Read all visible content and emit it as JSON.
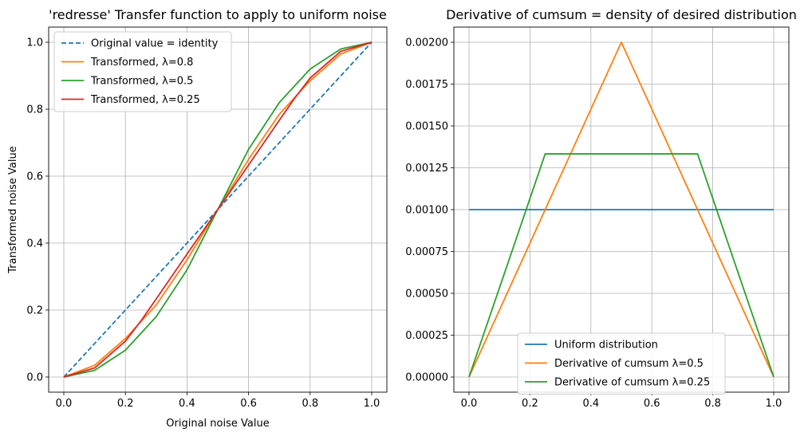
{
  "chart_data": [
    {
      "type": "line",
      "title": "'redresse' Transfer function to apply to uniform noise",
      "xlabel": "Original noise Value",
      "ylabel": "Transformed noise Value",
      "xlim": [
        0.0,
        1.0
      ],
      "ylim": [
        0.0,
        1.0
      ],
      "xticks": [
        "0.0",
        "0.2",
        "0.4",
        "0.6",
        "0.8",
        "1.0"
      ],
      "yticks": [
        "0.0",
        "0.2",
        "0.4",
        "0.6",
        "0.8",
        "1.0"
      ],
      "grid": true,
      "legend_position": "top-left",
      "series": [
        {
          "name": "Original value = identity",
          "color": "#1f77b4",
          "dashed": true,
          "x": [
            0.0,
            1.0
          ],
          "y": [
            0.0,
            1.0
          ]
        },
        {
          "name": "Transformed, λ=0.8",
          "color": "#ff7f0e",
          "dashed": false,
          "x": [
            0.0,
            0.1,
            0.2,
            0.3,
            0.4,
            0.5,
            0.6,
            0.7,
            0.8,
            0.9,
            1.0
          ],
          "y": [
            0.0,
            0.035,
            0.115,
            0.215,
            0.35,
            0.5,
            0.65,
            0.785,
            0.885,
            0.965,
            1.0
          ]
        },
        {
          "name": "Transformed, λ=0.5",
          "color": "#2ca02c",
          "dashed": false,
          "x": [
            0.0,
            0.1,
            0.2,
            0.3,
            0.4,
            0.5,
            0.6,
            0.7,
            0.8,
            0.9,
            1.0
          ],
          "y": [
            0.0,
            0.02,
            0.08,
            0.18,
            0.32,
            0.5,
            0.68,
            0.82,
            0.92,
            0.98,
            1.0
          ]
        },
        {
          "name": "Transformed, λ=0.25",
          "color": "#d62728",
          "dashed": false,
          "x": [
            0.0,
            0.1,
            0.2,
            0.25,
            0.3,
            0.4,
            0.5,
            0.6,
            0.7,
            0.75,
            0.8,
            0.9,
            1.0
          ],
          "y": [
            0.0,
            0.027,
            0.107,
            0.167,
            0.233,
            0.367,
            0.5,
            0.633,
            0.767,
            0.833,
            0.893,
            0.973,
            1.0
          ]
        }
      ]
    },
    {
      "type": "line",
      "title": "Derivative of cumsum = density of desired distribution",
      "xlabel": "",
      "ylabel": "",
      "xlim": [
        0.0,
        1.0
      ],
      "ylim": [
        0.0,
        0.002
      ],
      "xticks": [
        "0.0",
        "0.2",
        "0.4",
        "0.6",
        "0.8",
        "1.0"
      ],
      "yticks": [
        "0.00000",
        "0.00025",
        "0.00050",
        "0.00075",
        "0.00100",
        "0.00125",
        "0.00150",
        "0.00175",
        "0.00200"
      ],
      "grid": true,
      "legend_position": "bottom-center",
      "series": [
        {
          "name": "Uniform distribution",
          "color": "#1f77b4",
          "dashed": false,
          "x": [
            0.0,
            1.0
          ],
          "y": [
            0.001,
            0.001
          ]
        },
        {
          "name": "Derivative of cumsum λ=0.5",
          "color": "#ff7f0e",
          "dashed": false,
          "x": [
            0.0,
            0.5,
            1.0
          ],
          "y": [
            0.0,
            0.002,
            0.0
          ]
        },
        {
          "name": "Derivative of cumsum λ=0.25",
          "color": "#2ca02c",
          "dashed": false,
          "x": [
            0.0,
            0.25,
            0.75,
            1.0
          ],
          "y": [
            0.0,
            0.001333,
            0.001333,
            0.0
          ]
        }
      ]
    }
  ]
}
